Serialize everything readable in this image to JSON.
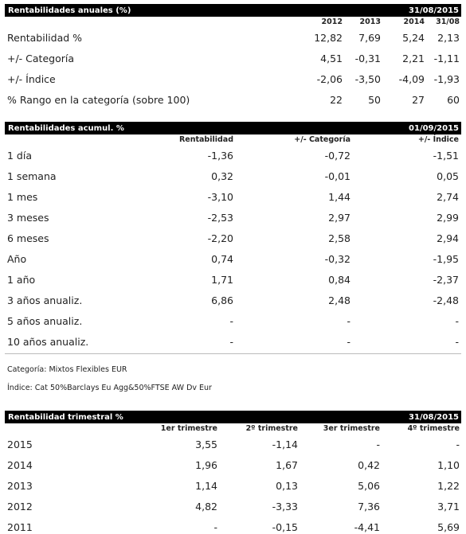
{
  "anuales": {
    "title": "Rentabilidades anuales (%)",
    "date": "31/08/2015",
    "columns": [
      "2012",
      "2013",
      "2014",
      "31/08"
    ],
    "rows": [
      {
        "label": "Rentabilidad %",
        "values": [
          "12,82",
          "7,69",
          "5,24",
          "2,13"
        ]
      },
      {
        "label": "+/- Categoría",
        "values": [
          "4,51",
          "-0,31",
          "2,21",
          "-1,11"
        ]
      },
      {
        "label": "+/- Índice",
        "values": [
          "-2,06",
          "-3,50",
          "-4,09",
          "-1,93"
        ]
      },
      {
        "label": "% Rango en la categoría (sobre 100)",
        "values": [
          "22",
          "50",
          "27",
          "60"
        ]
      }
    ]
  },
  "acumul": {
    "title": "Rentabilidades acumul. %",
    "date": "01/09/2015",
    "columns": [
      "Rentabilidad",
      "+/- Categoría",
      "+/- Índice"
    ],
    "rows": [
      {
        "label": "1 día",
        "values": [
          "-1,36",
          "-0,72",
          "-1,51"
        ]
      },
      {
        "label": "1 semana",
        "values": [
          "0,32",
          "-0,01",
          "0,05"
        ]
      },
      {
        "label": "1 mes",
        "values": [
          "-3,10",
          "1,44",
          "2,74"
        ]
      },
      {
        "label": "3 meses",
        "values": [
          "-2,53",
          "2,97",
          "2,99"
        ]
      },
      {
        "label": "6 meses",
        "values": [
          "-2,20",
          "2,58",
          "2,94"
        ]
      },
      {
        "label": "Año",
        "values": [
          "0,74",
          "-0,32",
          "-1,95"
        ]
      },
      {
        "label": "1 año",
        "values": [
          "1,71",
          "0,84",
          "-2,37"
        ]
      },
      {
        "label": "3 años anualiz.",
        "values": [
          "6,86",
          "2,48",
          "-2,48"
        ]
      },
      {
        "label": "5 años anualiz.",
        "values": [
          "-",
          "-",
          "-"
        ]
      },
      {
        "label": "10 años anualiz.",
        "values": [
          "-",
          "-",
          "-"
        ]
      }
    ]
  },
  "notes": {
    "categoria": "Categoría: Mixtos Flexibles EUR",
    "indice": "Índice: Cat 50%Barclays Eu Agg&50%FTSE AW Dv Eur"
  },
  "trimestral": {
    "title": "Rentabilidad trimestral %",
    "date": "31/08/2015",
    "columns": [
      "1er trimestre",
      "2º trimestre",
      "3er trimestre",
      "4º trimestre"
    ],
    "rows": [
      {
        "label": "2015",
        "values": [
          "3,55",
          "-1,14",
          "-",
          "-"
        ]
      },
      {
        "label": "2014",
        "values": [
          "1,96",
          "1,67",
          "0,42",
          "1,10"
        ]
      },
      {
        "label": "2013",
        "values": [
          "1,14",
          "0,13",
          "5,06",
          "1,22"
        ]
      },
      {
        "label": "2012",
        "values": [
          "4,82",
          "-3,33",
          "7,36",
          "3,71"
        ]
      },
      {
        "label": "2011",
        "values": [
          "-",
          "-0,15",
          "-4,41",
          "5,69"
        ]
      }
    ]
  }
}
